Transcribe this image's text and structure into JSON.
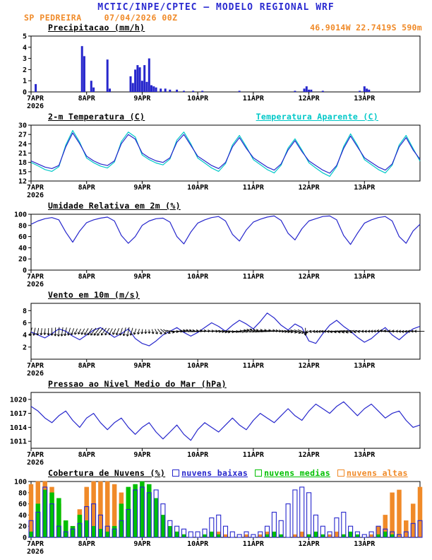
{
  "header": {
    "title": "MCTIC/INPE/CPTEC — MODELO REGIONAL WRF",
    "station": "SP PEDREIRA",
    "run": "07/04/2026 00Z",
    "location": "46.9014W 22.7419S 590m"
  },
  "colors": {
    "title_blue": "#2a2ad0",
    "blue": "#2626cc",
    "cyan": "#00c8c8",
    "green": "#00c000",
    "orange": "#f08a28",
    "axis": "#000000"
  },
  "x_axis": {
    "hours_range": [
      0,
      168
    ],
    "tick_hours": [
      0,
      24,
      48,
      72,
      96,
      120,
      144
    ],
    "tick_labels": [
      "7APR",
      "8APR",
      "9APR",
      "10APR",
      "11APR",
      "12APR",
      "13APR"
    ],
    "year_label": "2026"
  },
  "chart_data": [
    {
      "type": "bar",
      "title": "Precipitacao (mm/h)",
      "ylim": [
        0,
        5
      ],
      "yticks": [
        0,
        1,
        2,
        3,
        4,
        5
      ],
      "bar_color": "blue",
      "bars_hour_value": [
        [
          2,
          0.7
        ],
        [
          22,
          4.1
        ],
        [
          23,
          3.2
        ],
        [
          26,
          1.0
        ],
        [
          27,
          0.4
        ],
        [
          33,
          2.9
        ],
        [
          34,
          0.3
        ],
        [
          43,
          1.4
        ],
        [
          44,
          0.8
        ],
        [
          45,
          2.0
        ],
        [
          46,
          2.4
        ],
        [
          47,
          2.2
        ],
        [
          48,
          1.0
        ],
        [
          49,
          2.4
        ],
        [
          50,
          0.9
        ],
        [
          51,
          3.0
        ],
        [
          52,
          0.6
        ],
        [
          53,
          0.5
        ],
        [
          54,
          0.4
        ],
        [
          56,
          0.3
        ],
        [
          58,
          0.3
        ],
        [
          60,
          0.2
        ],
        [
          63,
          0.2
        ],
        [
          66,
          0.1
        ],
        [
          70,
          0.1
        ],
        [
          74,
          0.1
        ],
        [
          90,
          0.1
        ],
        [
          114,
          0.1
        ],
        [
          118,
          0.3
        ],
        [
          119,
          0.5
        ],
        [
          120,
          0.2
        ],
        [
          121,
          0.2
        ],
        [
          126,
          0.1
        ],
        [
          142,
          0.1
        ],
        [
          144,
          0.5
        ],
        [
          145,
          0.3
        ],
        [
          146,
          0.2
        ]
      ]
    },
    {
      "type": "line",
      "title": "2-m Temperatura (C)",
      "ylim": [
        12,
        30
      ],
      "yticks": [
        12,
        15,
        18,
        21,
        24,
        27,
        30
      ],
      "x_step_hours": 3,
      "series": [
        {
          "name": "2-m Temperatura (C)",
          "color": "blue",
          "values": [
            18.5,
            17.5,
            16.5,
            16.0,
            17.0,
            23.0,
            27.5,
            24.0,
            20.0,
            18.5,
            17.5,
            17.0,
            18.5,
            24.0,
            27.0,
            25.5,
            21.0,
            19.5,
            18.5,
            18.0,
            19.5,
            24.5,
            27.0,
            23.5,
            20.0,
            18.5,
            17.0,
            16.0,
            18.0,
            23.0,
            26.0,
            22.5,
            19.5,
            18.0,
            16.5,
            15.5,
            17.5,
            22.0,
            25.0,
            21.5,
            18.5,
            17.0,
            15.5,
            14.5,
            17.0,
            22.5,
            26.5,
            23.0,
            19.5,
            18.0,
            16.5,
            15.5,
            17.5,
            23.0,
            26.0,
            22.0,
            19.0
          ]
        },
        {
          "name": "Temperatura Aparente (C)",
          "color": "cyan",
          "values": [
            18.0,
            16.9,
            15.7,
            15.1,
            16.6,
            23.6,
            28.3,
            24.5,
            19.4,
            17.9,
            16.8,
            16.2,
            18.1,
            24.7,
            27.8,
            26.2,
            20.4,
            18.9,
            17.8,
            17.2,
            19.1,
            25.2,
            27.8,
            24.0,
            19.4,
            17.8,
            16.2,
            15.1,
            17.6,
            23.6,
            26.7,
            23.0,
            18.9,
            17.3,
            15.7,
            14.6,
            17.1,
            22.6,
            25.6,
            22.0,
            17.9,
            16.2,
            14.6,
            13.5,
            16.6,
            23.1,
            27.2,
            23.5,
            18.9,
            17.3,
            15.7,
            14.6,
            17.1,
            23.6,
            26.7,
            22.5,
            18.4
          ]
        }
      ]
    },
    {
      "type": "line",
      "title": "Umidade Relativa em 2m (%)",
      "ylim": [
        0,
        100
      ],
      "yticks": [
        0,
        20,
        40,
        60,
        80,
        100
      ],
      "x_step_hours": 3,
      "series": [
        {
          "name": "Umidade Relativa em 2m (%)",
          "color": "blue",
          "values": [
            82,
            88,
            92,
            94,
            90,
            68,
            50,
            70,
            85,
            90,
            93,
            95,
            88,
            62,
            48,
            60,
            80,
            88,
            92,
            93,
            86,
            60,
            47,
            68,
            84,
            90,
            94,
            96,
            88,
            64,
            52,
            72,
            86,
            91,
            95,
            97,
            89,
            66,
            54,
            74,
            88,
            92,
            96,
            97,
            90,
            62,
            46,
            66,
            84,
            90,
            94,
            96,
            88,
            60,
            48,
            70,
            82
          ]
        }
      ]
    },
    {
      "type": "line_barbs",
      "title": "Vento em 10m (m/s)",
      "ylim": [
        0,
        9.2
      ],
      "yticks": [
        2,
        4,
        6,
        8
      ],
      "x_step_hours": 3,
      "barb_row_value": 4.6,
      "series": [
        {
          "name": "Vento em 10m (m/s)",
          "color": "blue",
          "values": [
            4.5,
            4.0,
            3.5,
            4.2,
            5.0,
            4.6,
            3.8,
            3.2,
            4.0,
            4.8,
            5.2,
            4.4,
            3.6,
            4.2,
            5.0,
            3.4,
            2.6,
            2.2,
            3.0,
            4.0,
            4.6,
            5.2,
            4.4,
            3.8,
            4.4,
            5.2,
            6.0,
            5.4,
            4.6,
            5.6,
            6.4,
            5.8,
            5.0,
            6.2,
            7.6,
            6.8,
            5.6,
            4.8,
            5.8,
            5.2,
            3.0,
            2.6,
            4.2,
            5.6,
            6.4,
            5.4,
            4.6,
            3.6,
            2.8,
            3.4,
            4.4,
            5.2,
            4.0,
            3.2,
            4.2,
            5.0,
            5.4
          ]
        }
      ],
      "arrow_dirs_deg": [
        255,
        260,
        265,
        270,
        265,
        258,
        250,
        245,
        240,
        235,
        232,
        238,
        246,
        252,
        258,
        250,
        262,
        275,
        295,
        320,
        345,
        5,
        15,
        10,
        8,
        4,
        0,
        355,
        348,
        356,
        8,
        18,
        14,
        10,
        6,
        2,
        356,
        350,
        344,
        340,
        200,
        192,
        186,
        182,
        186,
        190,
        196,
        192,
        186,
        182,
        178,
        172,
        176,
        180,
        186,
        182,
        180
      ]
    },
    {
      "type": "line",
      "title": "Pressao ao Nivel Medio do Mar (hPa)",
      "ylim": [
        1009.5,
        1021.5
      ],
      "yticks": [
        1011,
        1014,
        1017,
        1020
      ],
      "x_step_hours": 3,
      "series": [
        {
          "name": "Pressao ao Nivel Medio do Mar (hPa)",
          "color": "blue",
          "values": [
            1018.5,
            1017.5,
            1016.0,
            1015.0,
            1016.5,
            1017.5,
            1015.5,
            1014.0,
            1016.0,
            1017.0,
            1015.0,
            1013.5,
            1015.0,
            1016.0,
            1014.0,
            1012.5,
            1014.0,
            1015.0,
            1013.0,
            1011.5,
            1013.0,
            1014.5,
            1012.5,
            1011.2,
            1013.5,
            1015.0,
            1014.0,
            1013.0,
            1014.5,
            1016.0,
            1014.5,
            1013.5,
            1015.5,
            1017.0,
            1016.0,
            1015.0,
            1016.5,
            1018.0,
            1016.5,
            1015.5,
            1017.5,
            1019.0,
            1018.0,
            1017.0,
            1018.5,
            1019.5,
            1018.0,
            1016.5,
            1018.0,
            1019.0,
            1017.5,
            1016.0,
            1017.0,
            1017.5,
            1015.5,
            1014.0,
            1014.5
          ]
        }
      ]
    },
    {
      "type": "bar_multi",
      "title": "Cobertura de Nuvens (%)",
      "ylim": [
        0,
        100
      ],
      "yticks": [
        0,
        20,
        40,
        60,
        80,
        100
      ],
      "x_step_hours": 3,
      "series": [
        {
          "label": "nuvens baixas",
          "color": "blue",
          "style": "outline",
          "values": [
            30,
            45,
            90,
            60,
            20,
            10,
            15,
            25,
            55,
            60,
            40,
            20,
            15,
            30,
            50,
            85,
            90,
            80,
            85,
            60,
            30,
            20,
            15,
            10,
            10,
            15,
            35,
            40,
            20,
            10,
            5,
            10,
            5,
            10,
            20,
            45,
            30,
            60,
            85,
            90,
            80,
            40,
            20,
            10,
            35,
            45,
            20,
            10,
            5,
            10,
            20,
            15,
            10,
            5,
            10,
            25,
            30
          ]
        },
        {
          "label": "nuvens medias",
          "color": "green",
          "style": "fill",
          "values": [
            10,
            60,
            85,
            80,
            70,
            30,
            20,
            40,
            30,
            20,
            15,
            10,
            20,
            60,
            90,
            95,
            100,
            95,
            70,
            40,
            20,
            10,
            5,
            0,
            0,
            5,
            10,
            5,
            0,
            0,
            0,
            0,
            0,
            0,
            5,
            10,
            5,
            0,
            0,
            0,
            5,
            10,
            5,
            0,
            0,
            5,
            10,
            5,
            0,
            0,
            5,
            10,
            5,
            0,
            0,
            0,
            0
          ]
        },
        {
          "label": "nuvens altas",
          "color": "orange",
          "style": "fill",
          "values": [
            95,
            100,
            100,
            90,
            60,
            30,
            20,
            50,
            90,
            100,
            100,
            100,
            95,
            80,
            40,
            20,
            10,
            5,
            0,
            0,
            5,
            10,
            5,
            0,
            0,
            0,
            5,
            10,
            5,
            0,
            0,
            5,
            0,
            5,
            10,
            5,
            0,
            0,
            5,
            10,
            5,
            0,
            0,
            5,
            10,
            5,
            0,
            0,
            0,
            5,
            20,
            40,
            80,
            85,
            30,
            60,
            90
          ]
        }
      ]
    }
  ]
}
